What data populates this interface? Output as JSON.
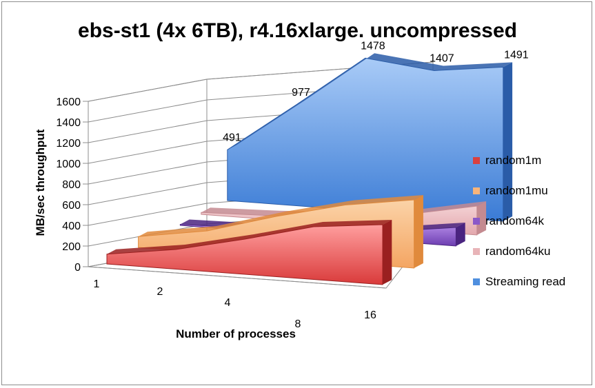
{
  "chart_data": {
    "type": "area",
    "title": "ebs-st1 (4x 6TB), r4.16xlarge. uncompressed",
    "xlabel": "Number of processes",
    "ylabel": "MB/sec throughput",
    "categories": [
      "1",
      "2",
      "4",
      "8",
      "16"
    ],
    "ylim": [
      0,
      1600
    ],
    "yticks": [
      "0",
      "200",
      "400",
      "600",
      "800",
      "1000",
      "1200",
      "1400",
      "1600"
    ],
    "grid": true,
    "legend_position": "right",
    "series": [
      {
        "name": "random1m",
        "values": [
          95,
          190,
          340,
          510,
          580
        ],
        "color": "#d9403f"
      },
      {
        "name": "random1mu",
        "values": [
          105,
          210,
          400,
          560,
          660
        ],
        "color": "#f7b47b"
      },
      {
        "name": "random64k",
        "values": [
          10,
          22,
          45,
          90,
          180
        ],
        "color": "#8a58c8"
      },
      {
        "name": "random64ku",
        "values": [
          18,
          38,
          75,
          150,
          280
        ],
        "color": "#e8b4b8"
      },
      {
        "name": "Streaming read",
        "values": [
          491,
          977,
          1478,
          1407,
          1491
        ],
        "color": "#4f8fdf",
        "labels": [
          "491",
          "977",
          "1478",
          "1407",
          "1491"
        ]
      }
    ]
  }
}
